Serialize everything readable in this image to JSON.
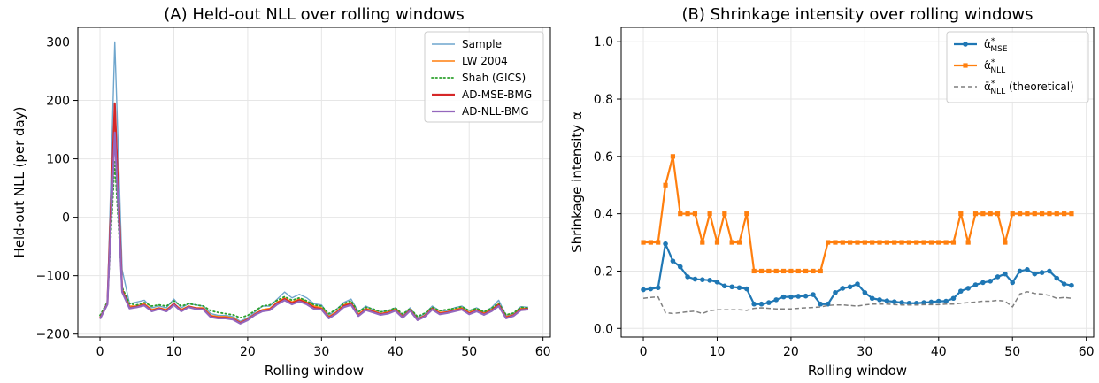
{
  "chart_data": [
    {
      "type": "line",
      "title": "(A) Held-out NLL over rolling windows",
      "xlabel": "Rolling window",
      "ylabel": "Held-out NLL (per day)",
      "xlim": [
        -3,
        61
      ],
      "ylim": [
        -205,
        325
      ],
      "xticks": [
        0,
        10,
        20,
        30,
        40,
        50,
        60
      ],
      "yticks": [
        -200,
        -100,
        0,
        100,
        200,
        300
      ],
      "ytick_labels": [
        "−200",
        "−100",
        "0",
        "100",
        "200",
        "300"
      ],
      "grid": true,
      "legend_position": "top-right",
      "series": [
        {
          "name": "Sample",
          "color": "#6fa6cd",
          "style": "solid",
          "width": 1.4,
          "x": [
            0,
            1,
            2,
            3,
            4,
            5,
            6,
            7,
            8,
            9,
            10,
            11,
            12,
            13,
            14,
            15,
            16,
            17,
            18,
            19,
            20,
            21,
            22,
            23,
            24,
            25,
            26,
            27,
            28,
            29,
            30,
            31,
            32,
            33,
            34,
            35,
            36,
            37,
            38,
            39,
            40,
            41,
            42,
            43,
            44,
            45,
            46,
            47,
            48,
            49,
            50,
            51,
            52,
            53,
            54,
            55,
            56,
            57,
            58
          ],
          "values": [
            -170,
            -145,
            300,
            -90,
            -148,
            -145,
            -142,
            -155,
            -152,
            -155,
            -140,
            -155,
            -148,
            -150,
            -152,
            -165,
            -168,
            -168,
            -170,
            -178,
            -172,
            -162,
            -152,
            -152,
            -140,
            -128,
            -138,
            -132,
            -138,
            -148,
            -150,
            -168,
            -158,
            -146,
            -140,
            -162,
            -152,
            -158,
            -162,
            -160,
            -155,
            -168,
            -155,
            -172,
            -165,
            -152,
            -160,
            -160,
            -155,
            -152,
            -160,
            -155,
            -162,
            -155,
            -142,
            -168,
            -165,
            -153,
            -154
          ]
        },
        {
          "name": "LW 2004",
          "color": "#ff7f0e",
          "style": "solid",
          "width": 1.5,
          "x": [
            0,
            1,
            2,
            3,
            4,
            5,
            6,
            7,
            8,
            9,
            10,
            11,
            12,
            13,
            14,
            15,
            16,
            17,
            18,
            19,
            20,
            21,
            22,
            23,
            24,
            25,
            26,
            27,
            28,
            29,
            30,
            31,
            32,
            33,
            34,
            35,
            36,
            37,
            38,
            39,
            40,
            41,
            42,
            43,
            44,
            45,
            46,
            47,
            48,
            49,
            50,
            51,
            52,
            53,
            54,
            55,
            56,
            57,
            58
          ],
          "values": [
            -172,
            -148,
            150,
            -122,
            -152,
            -152,
            -148,
            -158,
            -155,
            -158,
            -148,
            -158,
            -152,
            -155,
            -155,
            -168,
            -170,
            -170,
            -172,
            -180,
            -174,
            -165,
            -158,
            -156,
            -145,
            -138,
            -145,
            -140,
            -145,
            -152,
            -155,
            -170,
            -162,
            -150,
            -146,
            -166,
            -156,
            -160,
            -165,
            -162,
            -157,
            -170,
            -158,
            -174,
            -168,
            -155,
            -163,
            -162,
            -158,
            -155,
            -163,
            -158,
            -164,
            -158,
            -148,
            -170,
            -167,
            -156,
            -156
          ]
        },
        {
          "name": "Shah (GICS)",
          "color": "#2ca02c",
          "style": "dotted",
          "width": 1.8,
          "x": [
            0,
            1,
            2,
            3,
            4,
            5,
            6,
            7,
            8,
            9,
            10,
            11,
            12,
            13,
            14,
            15,
            16,
            17,
            18,
            19,
            20,
            21,
            22,
            23,
            24,
            25,
            26,
            27,
            28,
            29,
            30,
            31,
            32,
            33,
            34,
            35,
            36,
            37,
            38,
            39,
            40,
            41,
            42,
            43,
            44,
            45,
            46,
            47,
            48,
            49,
            50,
            51,
            52,
            53,
            54,
            55,
            56,
            57,
            58
          ],
          "values": [
            -168,
            -145,
            95,
            -120,
            -148,
            -150,
            -146,
            -152,
            -150,
            -152,
            -143,
            -152,
            -148,
            -150,
            -152,
            -160,
            -163,
            -165,
            -167,
            -172,
            -168,
            -160,
            -152,
            -150,
            -142,
            -136,
            -142,
            -138,
            -143,
            -150,
            -152,
            -165,
            -158,
            -148,
            -143,
            -162,
            -154,
            -157,
            -162,
            -160,
            -155,
            -166,
            -156,
            -170,
            -164,
            -154,
            -160,
            -158,
            -156,
            -153,
            -160,
            -156,
            -162,
            -156,
            -147,
            -167,
            -164,
            -154,
            -155
          ]
        },
        {
          "name": "AD-MSE-BMG",
          "color": "#d62728",
          "style": "solid",
          "width": 2.2,
          "x": [
            0,
            1,
            2,
            3,
            4,
            5,
            6,
            7,
            8,
            9,
            10,
            11,
            12,
            13,
            14,
            15,
            16,
            17,
            18,
            19,
            20,
            21,
            22,
            23,
            24,
            25,
            26,
            27,
            28,
            29,
            30,
            31,
            32,
            33,
            34,
            35,
            36,
            37,
            38,
            39,
            40,
            41,
            42,
            43,
            44,
            45,
            46,
            47,
            48,
            49,
            50,
            51,
            52,
            53,
            54,
            55,
            56,
            57,
            58
          ],
          "values": [
            -173,
            -148,
            195,
            -125,
            -155,
            -153,
            -150,
            -160,
            -156,
            -160,
            -148,
            -160,
            -153,
            -156,
            -157,
            -170,
            -172,
            -172,
            -174,
            -181,
            -175,
            -166,
            -160,
            -158,
            -147,
            -140,
            -147,
            -142,
            -147,
            -155,
            -157,
            -172,
            -164,
            -152,
            -148,
            -168,
            -158,
            -162,
            -166,
            -164,
            -159,
            -171,
            -159,
            -175,
            -169,
            -157,
            -165,
            -163,
            -160,
            -157,
            -165,
            -160,
            -166,
            -160,
            -150,
            -172,
            -168,
            -158,
            -157
          ]
        },
        {
          "name": "AD-NLL-BMG",
          "color": "#9467bd",
          "style": "solid",
          "width": 2.2,
          "x": [
            0,
            1,
            2,
            3,
            4,
            5,
            6,
            7,
            8,
            9,
            10,
            11,
            12,
            13,
            14,
            15,
            16,
            17,
            18,
            19,
            20,
            21,
            22,
            23,
            24,
            25,
            26,
            27,
            28,
            29,
            30,
            31,
            32,
            33,
            34,
            35,
            36,
            37,
            38,
            39,
            40,
            41,
            42,
            43,
            44,
            45,
            46,
            47,
            48,
            49,
            50,
            51,
            52,
            53,
            54,
            55,
            56,
            57,
            58
          ],
          "values": [
            -174,
            -149,
            145,
            -128,
            -156,
            -154,
            -151,
            -161,
            -157,
            -161,
            -150,
            -161,
            -154,
            -157,
            -158,
            -171,
            -173,
            -173,
            -175,
            -182,
            -176,
            -167,
            -161,
            -159,
            -149,
            -142,
            -149,
            -144,
            -149,
            -157,
            -158,
            -173,
            -165,
            -154,
            -150,
            -169,
            -159,
            -163,
            -167,
            -165,
            -160,
            -172,
            -160,
            -176,
            -170,
            -158,
            -166,
            -164,
            -161,
            -158,
            -166,
            -161,
            -167,
            -161,
            -152,
            -173,
            -169,
            -159,
            -158
          ]
        }
      ]
    },
    {
      "type": "line",
      "title": "(B) Shrinkage intensity over rolling windows",
      "xlabel": "Rolling window",
      "ylabel": "Shrinkage intensity α",
      "xlim": [
        -3,
        61
      ],
      "ylim": [
        -0.03,
        1.05
      ],
      "xticks": [
        0,
        10,
        20,
        30,
        40,
        50,
        60
      ],
      "yticks": [
        0.0,
        0.2,
        0.4,
        0.6,
        0.8,
        1.0
      ],
      "ytick_labels": [
        "0.0",
        "0.2",
        "0.4",
        "0.6",
        "0.8",
        "1.0"
      ],
      "grid": true,
      "legend_position": "top-right",
      "series": [
        {
          "name": "α̂*MSE",
          "legend_main": "α̂",
          "legend_sup": "*",
          "legend_sub": "MSE",
          "legend_suffix": "",
          "color": "#1f77b4",
          "style": "solid",
          "width": 2.2,
          "marker": "circle",
          "x": [
            0,
            1,
            2,
            3,
            4,
            5,
            6,
            7,
            8,
            9,
            10,
            11,
            12,
            13,
            14,
            15,
            16,
            17,
            18,
            19,
            20,
            21,
            22,
            23,
            24,
            25,
            26,
            27,
            28,
            29,
            30,
            31,
            32,
            33,
            34,
            35,
            36,
            37,
            38,
            39,
            40,
            41,
            42,
            43,
            44,
            45,
            46,
            47,
            48,
            49,
            50,
            51,
            52,
            53,
            54,
            55,
            56,
            57,
            58
          ],
          "values": [
            0.135,
            0.138,
            0.142,
            0.295,
            0.235,
            0.215,
            0.18,
            0.172,
            0.17,
            0.168,
            0.162,
            0.148,
            0.145,
            0.142,
            0.138,
            0.085,
            0.085,
            0.09,
            0.1,
            0.11,
            0.11,
            0.112,
            0.113,
            0.118,
            0.085,
            0.085,
            0.125,
            0.14,
            0.145,
            0.155,
            0.125,
            0.105,
            0.1,
            0.096,
            0.093,
            0.09,
            0.088,
            0.088,
            0.09,
            0.092,
            0.095,
            0.095,
            0.105,
            0.13,
            0.14,
            0.152,
            0.16,
            0.165,
            0.18,
            0.19,
            0.16,
            0.2,
            0.205,
            0.19,
            0.195,
            0.2,
            0.175,
            0.155,
            0.15
          ]
        },
        {
          "name": "α̂*NLL",
          "legend_main": "α̂",
          "legend_sup": "*",
          "legend_sub": "NLL",
          "legend_suffix": "",
          "color": "#ff7f0e",
          "style": "solid",
          "width": 2.2,
          "marker": "square",
          "x": [
            0,
            1,
            2,
            3,
            4,
            5,
            6,
            7,
            8,
            9,
            10,
            11,
            12,
            13,
            14,
            15,
            16,
            17,
            18,
            19,
            20,
            21,
            22,
            23,
            24,
            25,
            26,
            27,
            28,
            29,
            30,
            31,
            32,
            33,
            34,
            35,
            36,
            37,
            38,
            39,
            40,
            41,
            42,
            43,
            44,
            45,
            46,
            47,
            48,
            49,
            50,
            51,
            52,
            53,
            54,
            55,
            56,
            57,
            58
          ],
          "values": [
            0.3,
            0.3,
            0.3,
            0.5,
            0.6,
            0.4,
            0.4,
            0.4,
            0.3,
            0.4,
            0.3,
            0.4,
            0.3,
            0.3,
            0.4,
            0.2,
            0.2,
            0.2,
            0.2,
            0.2,
            0.2,
            0.2,
            0.2,
            0.2,
            0.2,
            0.3,
            0.3,
            0.3,
            0.3,
            0.3,
            0.3,
            0.3,
            0.3,
            0.3,
            0.3,
            0.3,
            0.3,
            0.3,
            0.3,
            0.3,
            0.3,
            0.3,
            0.3,
            0.4,
            0.3,
            0.4,
            0.4,
            0.4,
            0.4,
            0.3,
            0.4,
            0.4,
            0.4,
            0.4,
            0.4,
            0.4,
            0.4,
            0.4,
            0.4
          ]
        },
        {
          "name": "ᾱ*NLL (theoretical)",
          "legend_main": "ᾱ",
          "legend_sup": "*",
          "legend_sub": "NLL",
          "legend_suffix": " (theoretical)",
          "color": "#7f7f7f",
          "style": "dashed",
          "width": 1.5,
          "marker": "none",
          "x": [
            0,
            1,
            2,
            3,
            4,
            5,
            6,
            7,
            8,
            9,
            10,
            11,
            12,
            13,
            14,
            15,
            16,
            17,
            18,
            19,
            20,
            21,
            22,
            23,
            24,
            25,
            26,
            27,
            28,
            29,
            30,
            31,
            32,
            33,
            34,
            35,
            36,
            37,
            38,
            39,
            40,
            41,
            42,
            43,
            44,
            45,
            46,
            47,
            48,
            49,
            50,
            51,
            52,
            53,
            54,
            55,
            56,
            57,
            58
          ],
          "values": [
            0.105,
            0.108,
            0.11,
            0.055,
            0.052,
            0.055,
            0.058,
            0.06,
            0.052,
            0.062,
            0.065,
            0.065,
            0.065,
            0.065,
            0.063,
            0.07,
            0.072,
            0.07,
            0.068,
            0.068,
            0.068,
            0.07,
            0.072,
            0.073,
            0.075,
            0.08,
            0.082,
            0.082,
            0.08,
            0.078,
            0.082,
            0.085,
            0.085,
            0.085,
            0.083,
            0.082,
            0.082,
            0.082,
            0.083,
            0.083,
            0.083,
            0.085,
            0.085,
            0.088,
            0.09,
            0.092,
            0.095,
            0.095,
            0.098,
            0.095,
            0.075,
            0.12,
            0.128,
            0.122,
            0.12,
            0.115,
            0.105,
            0.108,
            0.105
          ]
        }
      ]
    }
  ]
}
